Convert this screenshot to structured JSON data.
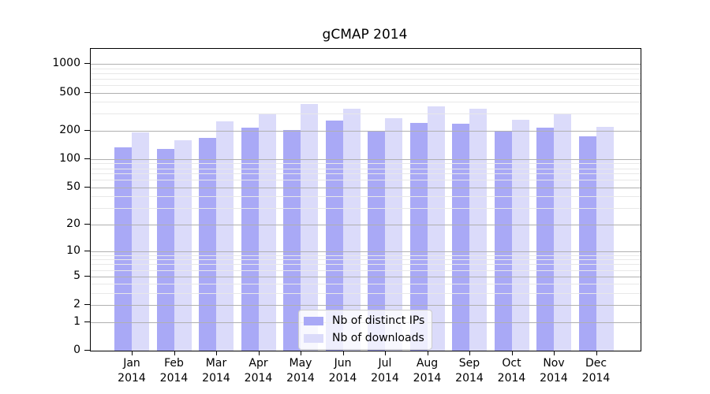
{
  "title": "gCMAP 2014",
  "chart_data": {
    "type": "bar",
    "title": "gCMAP 2014",
    "categories": [
      "Jan",
      "Feb",
      "Mar",
      "Apr",
      "May",
      "Jun",
      "Jul",
      "Aug",
      "Sep",
      "Oct",
      "Nov",
      "Dec"
    ],
    "year_label": "2014",
    "series": [
      {
        "name": "Nb of distinct IPs",
        "color": "#a9a9f6",
        "values": [
          134,
          127,
          168,
          213,
          202,
          255,
          194,
          242,
          238,
          194,
          215,
          175
        ]
      },
      {
        "name": "Nb of downloads",
        "color": "#dbdbfa",
        "values": [
          190,
          157,
          250,
          298,
          378,
          338,
          268,
          362,
          340,
          258,
          305,
          220
        ]
      }
    ],
    "xlabel": "",
    "ylabel": "",
    "yscale": "log1p",
    "ylim": [
      0,
      1435
    ],
    "yticks": [
      1000,
      500,
      200,
      100,
      50,
      20,
      10,
      5,
      2,
      1,
      0
    ],
    "y_minor_gridlines": [
      3,
      4,
      6,
      7,
      8,
      9,
      30,
      40,
      60,
      70,
      80,
      90,
      300,
      400,
      600,
      700,
      800,
      900
    ],
    "grid": true,
    "grid_above_bars": true,
    "legend_position": "lower center",
    "colors": {
      "major_grid": "#b0b0b0",
      "minor_grid": "#e8e8e8",
      "axis": "#000000",
      "background": "#ffffff"
    }
  }
}
